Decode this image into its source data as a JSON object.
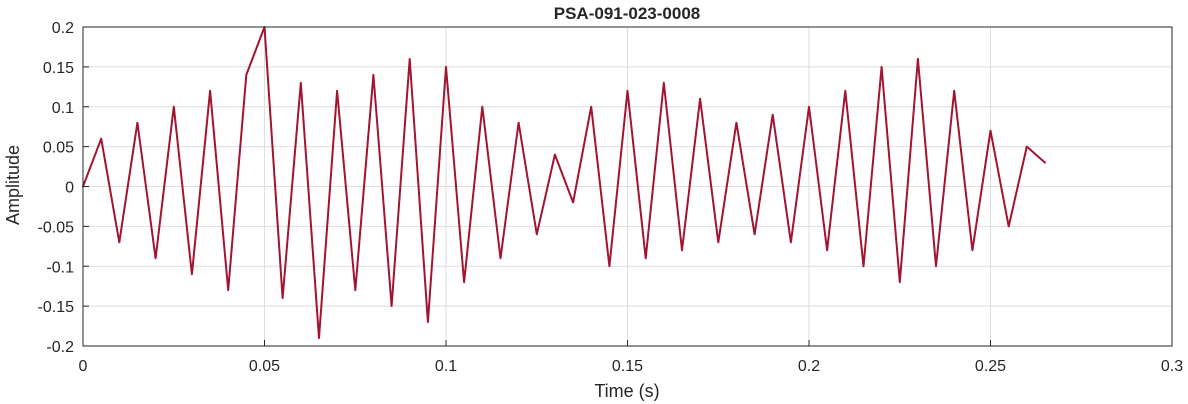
{
  "chart_data": {
    "type": "line",
    "title": "PSA-091-023-0008",
    "xlabel": "Time (s)",
    "ylabel": "Amplitude",
    "xlim": [
      0,
      0.3
    ],
    "ylim": [
      -0.2,
      0.2
    ],
    "x_ticks": [
      "0",
      "0.05",
      "0.1",
      "0.15",
      "0.2",
      "0.25",
      "0.3"
    ],
    "y_ticks": [
      "0.2",
      "0.15",
      "0.1",
      "0.05",
      "0",
      "-0.05",
      "-0.1",
      "-0.15",
      "-0.2"
    ],
    "grid": true,
    "line_color": "#A2142F",
    "series": [
      {
        "x": [
          0,
          0.005,
          0.01,
          0.015,
          0.02,
          0.025,
          0.03,
          0.035,
          0.04,
          0.045,
          0.05,
          0.055,
          0.06,
          0.065,
          0.07,
          0.075,
          0.08,
          0.085,
          0.09,
          0.095,
          0.1,
          0.105,
          0.11,
          0.115,
          0.12,
          0.125,
          0.13,
          0.135,
          0.14,
          0.145,
          0.15,
          0.155,
          0.16,
          0.165,
          0.17,
          0.175,
          0.18,
          0.185,
          0.19,
          0.195,
          0.2,
          0.205,
          0.21,
          0.215,
          0.22,
          0.225,
          0.23,
          0.235,
          0.24,
          0.245,
          0.25,
          0.255,
          0.26,
          0.265
        ],
        "y": [
          0.0,
          0.06,
          -0.07,
          0.08,
          -0.09,
          0.1,
          -0.11,
          0.12,
          -0.13,
          0.14,
          0.2,
          -0.14,
          0.13,
          -0.19,
          0.12,
          -0.13,
          0.14,
          -0.15,
          0.16,
          -0.17,
          0.15,
          -0.12,
          0.1,
          -0.09,
          0.08,
          -0.06,
          0.04,
          -0.02,
          0.1,
          -0.1,
          0.12,
          -0.09,
          0.13,
          -0.08,
          0.11,
          -0.07,
          0.08,
          -0.06,
          0.09,
          -0.07,
          0.1,
          -0.08,
          0.12,
          -0.1,
          0.15,
          -0.12,
          0.16,
          -0.1,
          0.12,
          -0.08,
          0.07,
          -0.05,
          0.05,
          0.03
        ]
      }
    ]
  }
}
